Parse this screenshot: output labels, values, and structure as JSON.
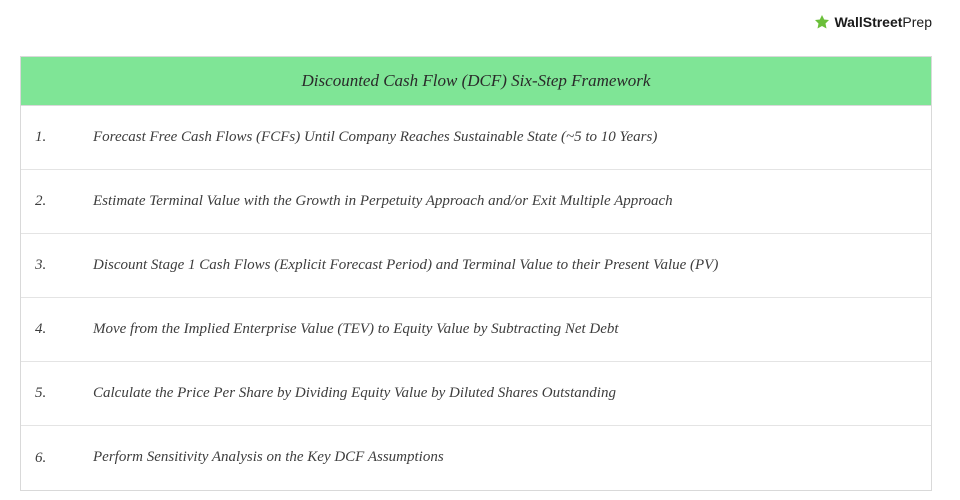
{
  "logo": {
    "text_wall": "Wall",
    "text_street": "Street",
    "text_prep": "Prep",
    "icon_color": "#6bbf3a"
  },
  "table": {
    "header_bg": "#7fe596",
    "border_color": "#d9d9d9",
    "row_border_color": "#e4e4e4",
    "title": "Discounted Cash Flow (DCF) Six-Step Framework",
    "font_family": "Segoe Script, Comic Sans MS, cursive",
    "title_fontsize": 17,
    "row_fontsize": 15,
    "text_color": "#3d3d3d",
    "steps": [
      {
        "num": "1.",
        "text": "Forecast Free Cash Flows (FCFs) Until Company Reaches Sustainable State (~5 to 10 Years)"
      },
      {
        "num": "2.",
        "text": "Estimate Terminal Value with the Growth in Perpetuity Approach and/or Exit Multiple Approach"
      },
      {
        "num": "3.",
        "text": "Discount Stage 1 Cash Flows (Explicit Forecast Period) and Terminal Value to their Present Value (PV)"
      },
      {
        "num": "4.",
        "text": "Move from the Implied Enterprise Value (TEV) to Equity Value by Subtracting Net Debt"
      },
      {
        "num": "5.",
        "text": "Calculate the Price Per Share by Dividing Equity Value by Diluted Shares Outstanding"
      },
      {
        "num": "6.",
        "text": "Perform Sensitivity Analysis on the Key DCF Assumptions"
      }
    ]
  }
}
